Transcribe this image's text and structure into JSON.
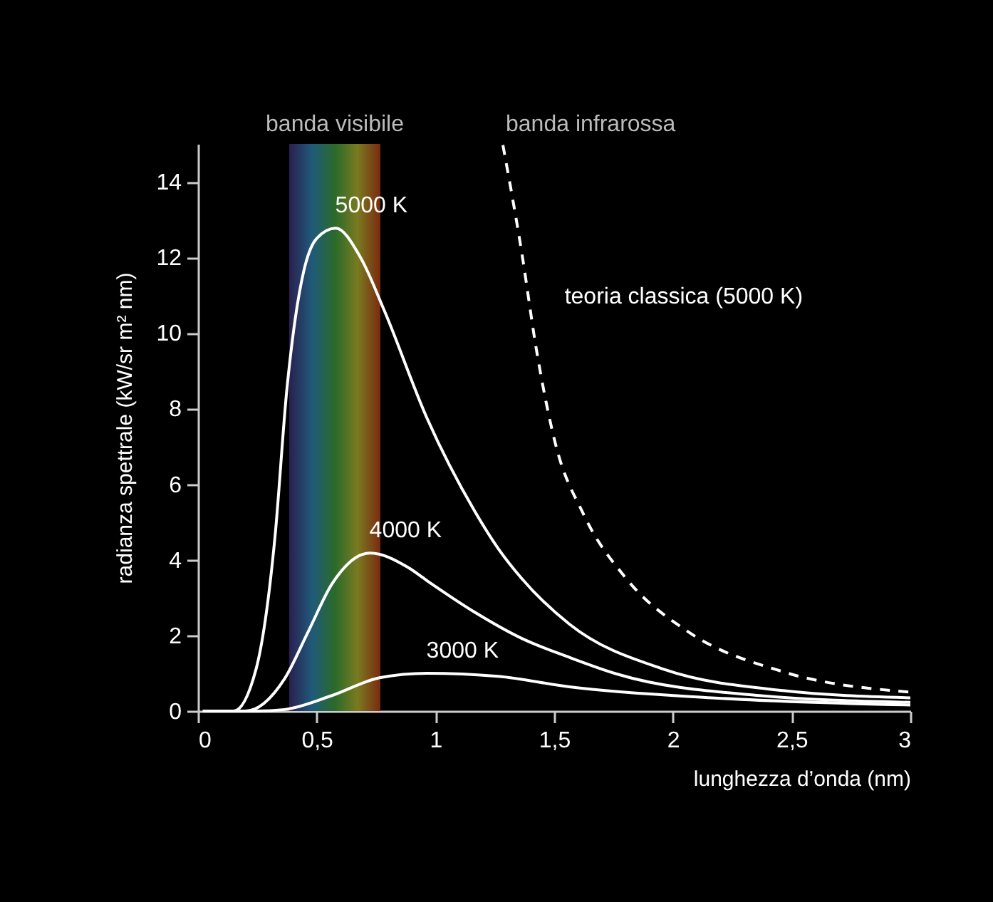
{
  "chart_data": {
    "type": "line",
    "xlabel": "lunghezza d’onda (nm)",
    "ylabel": "radianza spettrale (kW/sr m² nm)",
    "xlim": [
      0,
      3
    ],
    "ylim": [
      0,
      15
    ],
    "xticks": [
      0,
      {
        "value": 0.5,
        "label": "0,5"
      },
      1,
      {
        "value": 1.5,
        "label": "1,5"
      },
      2,
      {
        "value": 2.5,
        "label": "2,5"
      },
      3
    ],
    "yticks": [
      0,
      2,
      4,
      6,
      8,
      10,
      12,
      14
    ],
    "grid": false,
    "line_style": "solid",
    "marker": "none",
    "series": [
      {
        "name": "5000 K",
        "color": "#ffffff",
        "x": [
          0.02,
          0.15,
          0.244,
          0.324,
          0.374,
          0.41,
          0.444,
          0.5,
          0.58,
          0.684,
          0.784,
          0.964,
          1.164,
          1.264,
          1.364,
          1.564,
          1.964,
          2.464,
          3.0
        ],
        "values": [
          0,
          0,
          1.1,
          4.6,
          8.5,
          10.4,
          11.6,
          12.5,
          12.77,
          12.0,
          10.6,
          7.75,
          5.3,
          4.3,
          3.5,
          2.3,
          1.1,
          0.54,
          0.35
        ]
      },
      {
        "name": "4000 K",
        "color": "#ffffff",
        "x": [
          0.02,
          0.2,
          0.364,
          0.464,
          0.564,
          0.724,
          0.884,
          0.964,
          1.164,
          1.364,
          1.564,
          1.764,
          2.364,
          3.0
        ],
        "values": [
          0,
          0,
          0.85,
          2.1,
          3.36,
          4.18,
          3.8,
          3.45,
          2.62,
          1.92,
          1.42,
          0.98,
          0.41,
          0.23
        ]
      },
      {
        "name": "3000 K",
        "color": "#ffffff",
        "x": [
          0.05,
          0.25,
          0.364,
          0.564,
          0.764,
          0.964,
          1.264,
          1.564,
          2.164,
          3.0
        ],
        "values": [
          0,
          0,
          0.04,
          0.41,
          0.88,
          1.0,
          0.92,
          0.64,
          0.35,
          0.16
        ]
      },
      {
        "name": "teoria classica (5000 K)",
        "color": "#ffffff",
        "line_style": "dashed",
        "x": [
          1.284,
          1.364,
          1.424,
          1.504,
          1.624,
          1.804,
          2.064,
          2.464,
          3.0
        ],
        "values": [
          14.97,
          12.1,
          9.6,
          7.1,
          5.2,
          3.5,
          2.1,
          1.04,
          0.5
        ]
      }
    ],
    "bands": [
      {
        "axis": "x",
        "from": 0.384,
        "to": 0.768,
        "label": "banda visibile",
        "color": [
          "#2a1f4f",
          "#1f5a7a",
          "#2a6a2a",
          "#7a7a20",
          "#7a2a10"
        ]
      }
    ],
    "annotations": [
      "banda infrarossa"
    ]
  }
}
